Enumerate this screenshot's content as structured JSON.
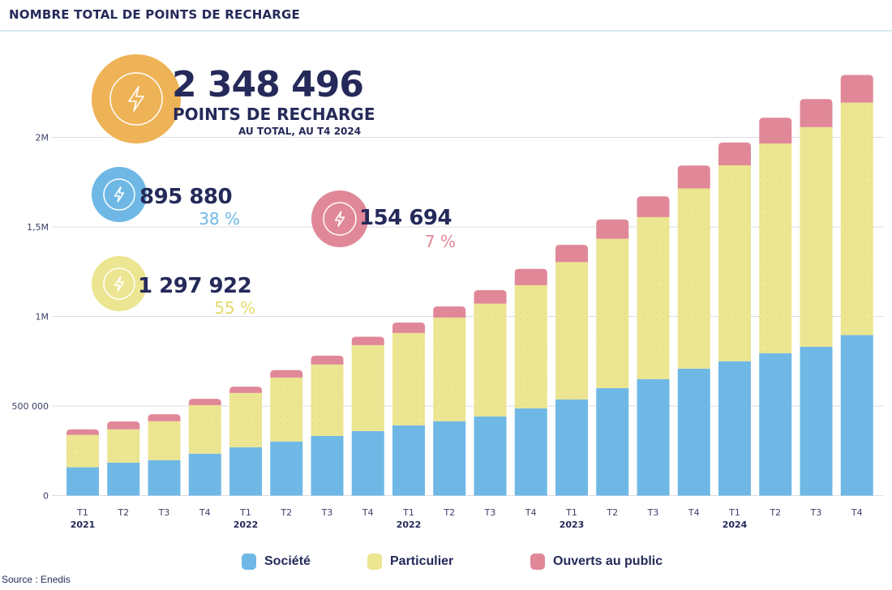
{
  "header": {
    "title": "NOMBRE TOTAL DE POINTS DE RECHARGE"
  },
  "kpis": {
    "total": {
      "value": "2 348 496",
      "line1": "POINTS DE RECHARGE",
      "line2": "AU TOTAL, AU T4 2024",
      "color": "#eeb356",
      "icon": "lightning-icon"
    },
    "societe": {
      "value": "895 880",
      "pct": "38 %",
      "color": "#6fb8e6",
      "icon": "lightning-icon"
    },
    "public": {
      "value": "154 694",
      "pct": "7 %",
      "color": "#e08898",
      "icon": "lightning-icon"
    },
    "particulier": {
      "value": "1 297 922",
      "pct": "55 %",
      "color": "#ece591",
      "icon": "lightning-icon"
    }
  },
  "legend": [
    {
      "label": "Société",
      "color": "#6fb8e6"
    },
    {
      "label": "Particulier",
      "color": "#ece591"
    },
    {
      "label": "Ouverts au public",
      "color": "#e08898"
    }
  ],
  "source": "Source : Enedis",
  "chart_data": {
    "type": "bar",
    "stacked": true,
    "title": "NOMBRE TOTAL DE POINTS DE RECHARGE",
    "xlabel": "",
    "ylabel": "",
    "ylim": [
      0,
      2000000
    ],
    "yticks": [
      {
        "value": 0,
        "label": "0"
      },
      {
        "value": 500000,
        "label": "500 000"
      },
      {
        "value": 1000000,
        "label": "1M"
      },
      {
        "value": 1500000,
        "label": "1,5M"
      },
      {
        "value": 2000000,
        "label": "2M"
      }
    ],
    "grid": true,
    "legend_position": "bottom",
    "categories": [
      "T1",
      "T2",
      "T3",
      "T4",
      "T1",
      "T2",
      "T3",
      "T4",
      "T1",
      "T2",
      "T3",
      "T4",
      "T1",
      "T2",
      "T3",
      "T4",
      "T1",
      "T2",
      "T3",
      "T4"
    ],
    "year_labels": [
      {
        "index": 0,
        "label": "2021"
      },
      {
        "index": 4,
        "label": "2022"
      },
      {
        "index": 8,
        "label": "2022"
      },
      {
        "index": 12,
        "label": "2023"
      },
      {
        "index": 16,
        "label": "2024"
      }
    ],
    "series": [
      {
        "name": "Société",
        "color": "#6fb8e6",
        "values": [
          158000,
          184000,
          198000,
          234000,
          270000,
          302000,
          333000,
          360000,
          392000,
          415000,
          442000,
          487000,
          537000,
          600000,
          650000,
          709000,
          750000,
          795000,
          831000,
          895880
        ]
      },
      {
        "name": "Particulier",
        "color": "#ece591",
        "values": [
          181000,
          186000,
          217000,
          271000,
          303000,
          357000,
          399000,
          480000,
          516000,
          579000,
          630000,
          688000,
          767000,
          834000,
          905000,
          1006000,
          1094000,
          1171000,
          1226000,
          1297922
        ]
      },
      {
        "name": "Ouverts au public",
        "color": "#e08898",
        "values": [
          31000,
          44000,
          39000,
          35000,
          35000,
          42000,
          49000,
          47000,
          58000,
          62000,
          75000,
          91000,
          96000,
          108000,
          116000,
          128000,
          127000,
          144000,
          157000,
          154694
        ]
      }
    ]
  }
}
